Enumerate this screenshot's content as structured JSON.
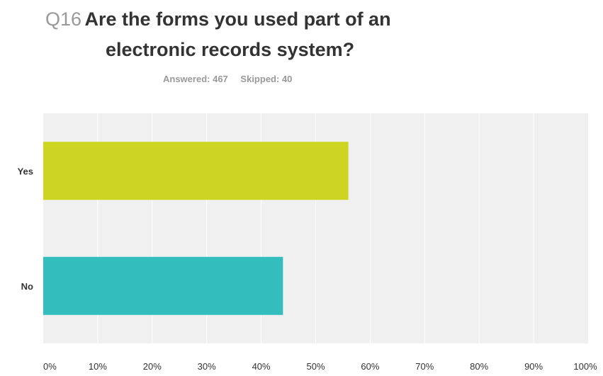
{
  "question": {
    "number": "Q16",
    "text_line1": "Are the forms you used part of an",
    "text_line2": "electronic records system?"
  },
  "meta": {
    "answered_label": "Answered:",
    "answered_value": "467",
    "skipped_label": "Skipped:",
    "skipped_value": "40"
  },
  "colors": {
    "yes_bar": "#cdd422",
    "no_bar": "#33bdbd",
    "plot_background": "#f0f0f0",
    "grid": "#ffffff"
  },
  "chart_data": {
    "type": "bar",
    "orientation": "horizontal",
    "categories": [
      "Yes",
      "No"
    ],
    "values": [
      56,
      44
    ],
    "xlim": [
      0,
      100
    ],
    "xticks": [
      "0%",
      "10%",
      "20%",
      "30%",
      "40%",
      "50%",
      "60%",
      "70%",
      "80%",
      "90%",
      "100%"
    ],
    "grid": true,
    "xlabel": "",
    "ylabel": "",
    "title": "Q16 Are the forms you used part of an electronic records system?"
  }
}
